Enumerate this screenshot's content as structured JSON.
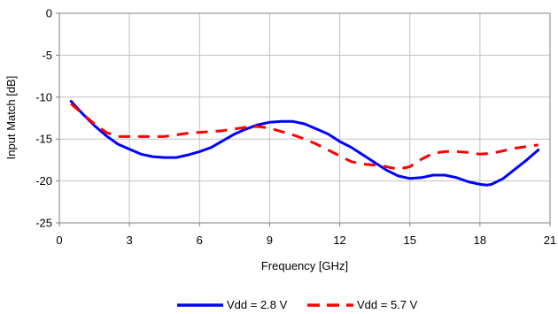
{
  "chart_data": {
    "type": "line",
    "xlabel": "Frequency [GHz]",
    "ylabel": "Input Match [dB]",
    "xlim": [
      0,
      21
    ],
    "ylim": [
      -25,
      0
    ],
    "xticks": [
      0,
      3,
      6,
      9,
      12,
      15,
      18,
      21
    ],
    "yticks": [
      0,
      -5,
      -10,
      -15,
      -20,
      -25
    ],
    "x_tick_labels": [
      "0",
      "3",
      "6",
      "9",
      "12",
      "15",
      "18",
      "21"
    ],
    "y_tick_labels": [
      "0",
      "-5",
      "-10",
      "-15",
      "-20",
      "-25"
    ],
    "grid": true,
    "legend_position": "bottom",
    "series": [
      {
        "name": "Vdd = 2.8 V",
        "color": "#0000FF",
        "dash": "solid",
        "points": [
          [
            0.5,
            -10.5
          ],
          [
            1.0,
            -12.0
          ],
          [
            1.5,
            -13.4
          ],
          [
            2.0,
            -14.6
          ],
          [
            2.5,
            -15.6
          ],
          [
            3.0,
            -16.2
          ],
          [
            3.5,
            -16.8
          ],
          [
            4.0,
            -17.1
          ],
          [
            4.5,
            -17.2
          ],
          [
            5.0,
            -17.2
          ],
          [
            5.5,
            -16.9
          ],
          [
            6.0,
            -16.5
          ],
          [
            6.5,
            -16.0
          ],
          [
            7.0,
            -15.2
          ],
          [
            7.5,
            -14.4
          ],
          [
            8.0,
            -13.8
          ],
          [
            8.5,
            -13.3
          ],
          [
            9.0,
            -13.0
          ],
          [
            9.5,
            -12.9
          ],
          [
            10.0,
            -12.9
          ],
          [
            10.5,
            -13.2
          ],
          [
            11.0,
            -13.8
          ],
          [
            11.5,
            -14.4
          ],
          [
            12.0,
            -15.3
          ],
          [
            12.5,
            -16.0
          ],
          [
            13.0,
            -16.9
          ],
          [
            13.5,
            -17.8
          ],
          [
            14.0,
            -18.7
          ],
          [
            14.5,
            -19.4
          ],
          [
            15.0,
            -19.7
          ],
          [
            15.5,
            -19.6
          ],
          [
            16.0,
            -19.3
          ],
          [
            16.5,
            -19.3
          ],
          [
            17.0,
            -19.6
          ],
          [
            17.5,
            -20.1
          ],
          [
            18.0,
            -20.4
          ],
          [
            18.3,
            -20.5
          ],
          [
            18.5,
            -20.4
          ],
          [
            19.0,
            -19.7
          ],
          [
            19.5,
            -18.6
          ],
          [
            20.0,
            -17.5
          ],
          [
            20.5,
            -16.3
          ]
        ]
      },
      {
        "name": "Vdd = 5.7 V",
        "color": "#FF0000",
        "dash": "dashed",
        "points": [
          [
            0.5,
            -10.8
          ],
          [
            1.0,
            -12.0
          ],
          [
            1.5,
            -13.2
          ],
          [
            2.0,
            -14.2
          ],
          [
            2.5,
            -14.7
          ],
          [
            3.0,
            -14.7
          ],
          [
            3.5,
            -14.7
          ],
          [
            4.0,
            -14.7
          ],
          [
            4.5,
            -14.7
          ],
          [
            5.0,
            -14.5
          ],
          [
            5.5,
            -14.3
          ],
          [
            6.0,
            -14.2
          ],
          [
            6.5,
            -14.1
          ],
          [
            7.0,
            -14.0
          ],
          [
            7.5,
            -13.8
          ],
          [
            8.0,
            -13.6
          ],
          [
            8.5,
            -13.5
          ],
          [
            9.0,
            -13.7
          ],
          [
            9.5,
            -14.1
          ],
          [
            10.0,
            -14.5
          ],
          [
            10.5,
            -15.0
          ],
          [
            11.0,
            -15.6
          ],
          [
            11.5,
            -16.3
          ],
          [
            12.0,
            -17.0
          ],
          [
            12.5,
            -17.7
          ],
          [
            13.0,
            -18.0
          ],
          [
            13.5,
            -18.1
          ],
          [
            14.0,
            -18.3
          ],
          [
            14.5,
            -18.6
          ],
          [
            15.0,
            -18.3
          ],
          [
            15.5,
            -17.4
          ],
          [
            16.0,
            -16.7
          ],
          [
            16.5,
            -16.5
          ],
          [
            17.0,
            -16.5
          ],
          [
            17.5,
            -16.6
          ],
          [
            18.0,
            -16.8
          ],
          [
            18.5,
            -16.7
          ],
          [
            19.0,
            -16.4
          ],
          [
            19.5,
            -16.1
          ],
          [
            20.0,
            -15.9
          ],
          [
            20.5,
            -15.7
          ]
        ]
      }
    ]
  }
}
